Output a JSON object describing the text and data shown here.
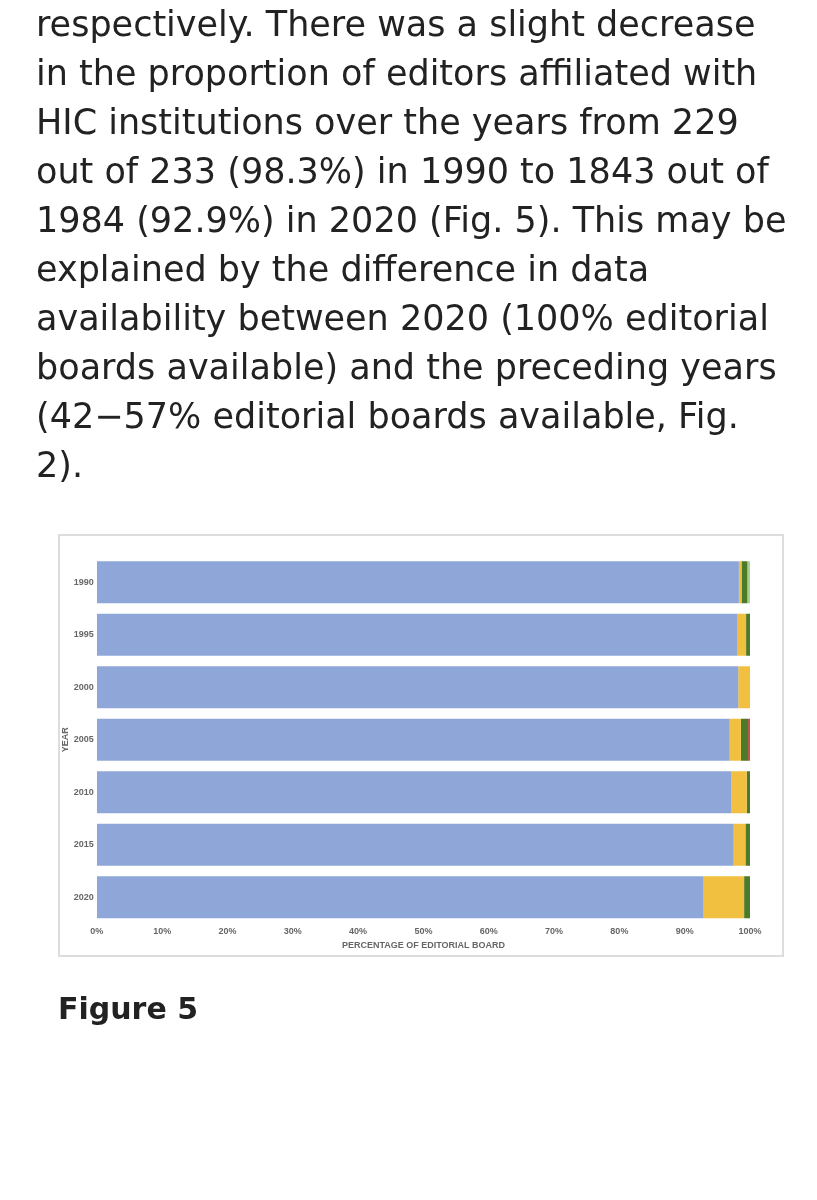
{
  "chart_data": {
    "type": "bar",
    "orientation": "horizontal",
    "stacked": true,
    "annotations": [
      "respectively. There was a slight decrease in the proportion of editors affiliated with HIC institutions over the years from 229 out of 233 (98.3%) in 1990 to 1843 out of 1984 (92.9%) in 2020 (Fig. 5). This may be explained by the difference in data availability between 2020 (100% editorial boards available) and the preceding years (42−57% editorial boards available, Fig. 2).",
      "Figure 5"
    ],
    "xlabel": "PERCENTAGE OF EDITORIAL BOARD",
    "ylabel": "YEAR",
    "categories": [
      "1990",
      "1995",
      "2000",
      "2005",
      "2010",
      "2015",
      "2020"
    ],
    "series": [
      {
        "color": "#8fa7d8",
        "values": [
          98.3,
          98.1,
          98.2,
          96.9,
          97.1,
          97.5,
          92.9
        ]
      },
      {
        "color": "#f2c040",
        "values": [
          0.4,
          1.3,
          1.8,
          1.7,
          2.4,
          1.8,
          6.2
        ]
      },
      {
        "color": "#4a7a2a",
        "values": [
          0.9,
          0.6,
          null,
          1.1,
          0.5,
          0.7,
          0.9
        ]
      },
      {
        "color": "#a9d08e",
        "values": [
          0.4,
          null,
          null,
          null,
          null,
          null,
          null
        ]
      },
      {
        "color": "#c0504d",
        "values": [
          null,
          null,
          null,
          0.3,
          null,
          null,
          null
        ]
      }
    ],
    "xlim": [
      0,
      100
    ],
    "xticks": [
      {
        "value": 0,
        "label": "0%"
      },
      {
        "value": 10,
        "label": "10%"
      },
      {
        "value": 20,
        "label": "20%"
      },
      {
        "value": 30,
        "label": "30%"
      },
      {
        "value": 40,
        "label": "40%"
      },
      {
        "value": 50,
        "label": "50%"
      },
      {
        "value": 60,
        "label": "60%"
      },
      {
        "value": 70,
        "label": "70%"
      },
      {
        "value": 80,
        "label": "80%"
      },
      {
        "value": 90,
        "label": "90%"
      },
      {
        "value": 100,
        "label": "100%"
      }
    ]
  }
}
